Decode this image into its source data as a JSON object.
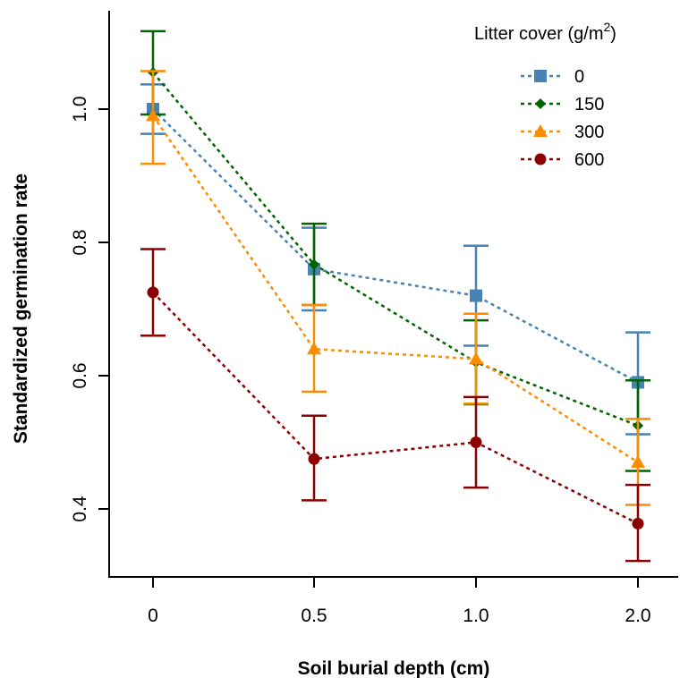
{
  "chart_data": {
    "type": "line",
    "xlabel": "Soil burial depth (cm)",
    "ylabel": "Standardized germination rate",
    "categories": [
      "0",
      "0.5",
      "1.0",
      "2.0"
    ],
    "ylim": [
      0.3,
      1.15
    ],
    "y_ticks": [
      "0.4",
      "0.6",
      "0.8",
      "1.0"
    ],
    "grid": false,
    "legend": {
      "title_prefix": "Litter cover (g/m",
      "title_sup": "2",
      "title_suffix": ")",
      "placement": "top-right"
    },
    "series": [
      {
        "name": "0",
        "color": "#4682B4",
        "marker": "square",
        "values": [
          1.0,
          0.76,
          0.72,
          0.59
        ],
        "err_low": [
          0.963,
          0.698,
          0.645,
          0.512
        ],
        "err_high": [
          1.037,
          0.822,
          0.795,
          0.665
        ]
      },
      {
        "name": "150",
        "color": "#006400",
        "marker": "diamond",
        "values": [
          1.055,
          0.767,
          0.62,
          0.525
        ],
        "err_low": [
          0.992,
          0.706,
          0.557,
          0.457
        ],
        "err_high": [
          1.117,
          0.828,
          0.683,
          0.593
        ]
      },
      {
        "name": "300",
        "color": "#FF8C00",
        "marker": "triangle",
        "values": [
          0.99,
          0.64,
          0.625,
          0.47
        ],
        "err_low": [
          0.918,
          0.576,
          0.558,
          0.406
        ],
        "err_high": [
          1.057,
          0.706,
          0.693,
          0.535
        ]
      },
      {
        "name": "600",
        "color": "#8B0000",
        "marker": "circle",
        "values": [
          0.725,
          0.475,
          0.5,
          0.378
        ],
        "err_low": [
          0.66,
          0.413,
          0.432,
          0.322
        ],
        "err_high": [
          0.79,
          0.54,
          0.568,
          0.436
        ]
      }
    ]
  }
}
